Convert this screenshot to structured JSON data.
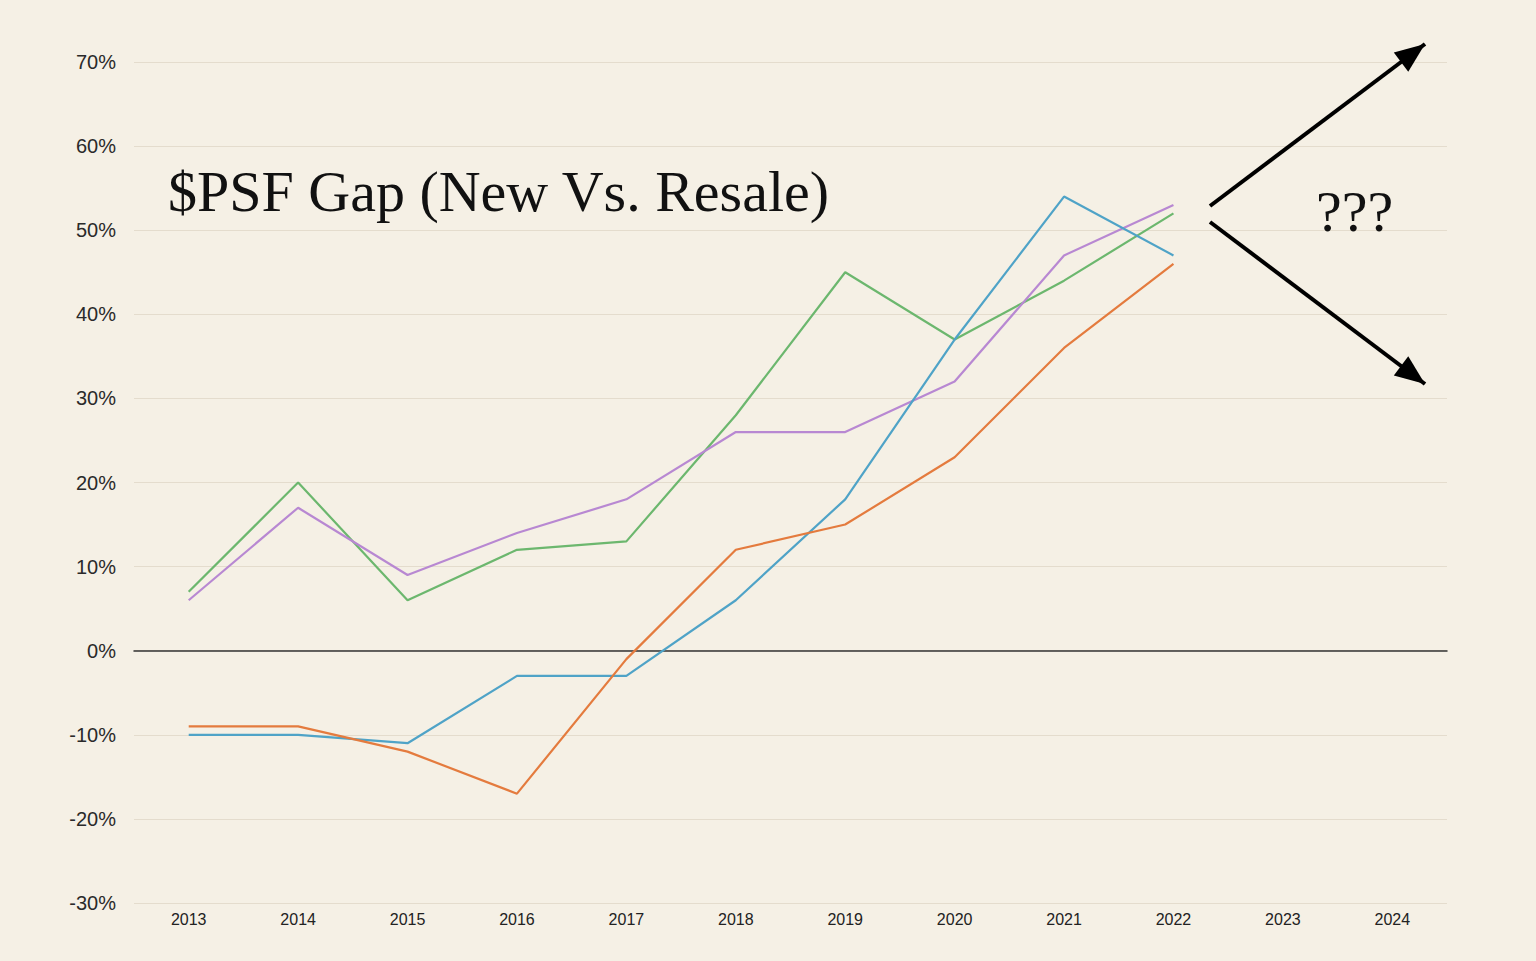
{
  "chart_data": {
    "type": "line",
    "title": "$PSF Gap (New Vs. Resale)",
    "annotation": "???",
    "categories": [
      "2013",
      "2014",
      "2015",
      "2016",
      "2017",
      "2018",
      "2019",
      "2020",
      "2021",
      "2022",
      "2023",
      "2024"
    ],
    "series": [
      {
        "color": "#6cb76e",
        "values": [
          7,
          20,
          6,
          12,
          13,
          28,
          45,
          37,
          44,
          52,
          null,
          null
        ]
      },
      {
        "color": "#b888d2",
        "values": [
          6,
          17,
          9,
          14,
          18,
          26,
          26,
          32,
          47,
          53,
          null,
          null
        ]
      },
      {
        "color": "#4fa3c7",
        "values": [
          -10,
          -10,
          -11,
          -3,
          -3,
          6,
          18,
          37,
          54,
          47,
          null,
          null
        ]
      },
      {
        "color": "#e47b3e",
        "values": [
          -9,
          -9,
          -12,
          -17,
          -1,
          12,
          15,
          23,
          36,
          46,
          null,
          null
        ]
      }
    ],
    "ylim": [
      -30,
      70
    ],
    "yticks": [
      {
        "value": -30,
        "label": "-30%"
      },
      {
        "value": -20,
        "label": "-20%"
      },
      {
        "value": -10,
        "label": "-10%"
      },
      {
        "value": 0,
        "label": "0%"
      },
      {
        "value": 10,
        "label": "10%"
      },
      {
        "value": 20,
        "label": "20%"
      },
      {
        "value": 30,
        "label": "30%"
      },
      {
        "value": 40,
        "label": "40%"
      },
      {
        "value": 50,
        "label": "50%"
      },
      {
        "value": 60,
        "label": "60%"
      },
      {
        "value": 70,
        "label": "70%"
      }
    ],
    "grid": true
  }
}
